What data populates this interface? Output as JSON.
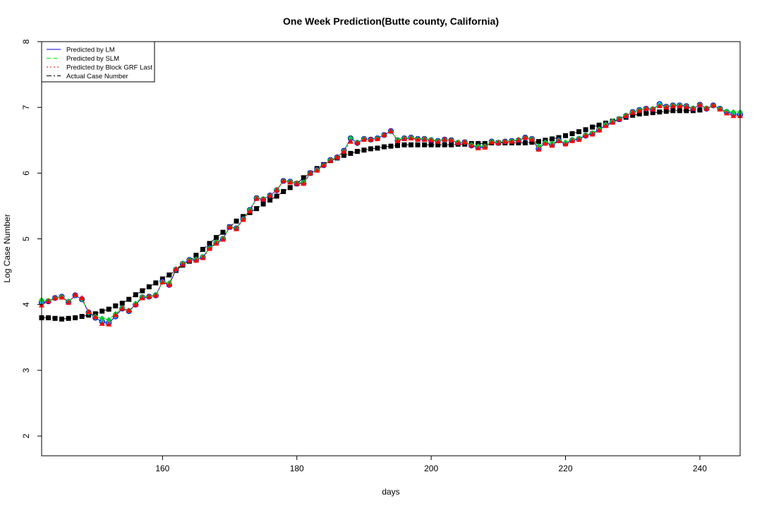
{
  "chart_data": {
    "type": "line",
    "title": "One Week Prediction(Butte county, California)",
    "xlabel": "days",
    "ylabel": "Log Case Number",
    "xlim": [
      142,
      246
    ],
    "ylim": [
      1.7,
      8
    ],
    "xticks": [
      160,
      180,
      200,
      220,
      240
    ],
    "yticks": [
      2,
      3,
      4,
      5,
      6,
      7,
      8
    ],
    "grid": false,
    "legend_position": "top-left",
    "x": [
      142,
      143,
      144,
      145,
      146,
      147,
      148,
      149,
      150,
      151,
      152,
      153,
      154,
      155,
      156,
      157,
      158,
      159,
      160,
      161,
      162,
      163,
      164,
      165,
      166,
      167,
      168,
      169,
      170,
      171,
      172,
      173,
      174,
      175,
      176,
      177,
      178,
      179,
      180,
      181,
      182,
      183,
      184,
      185,
      186,
      187,
      188,
      189,
      190,
      191,
      192,
      193,
      194,
      195,
      196,
      197,
      198,
      199,
      200,
      201,
      202,
      203,
      204,
      205,
      206,
      207,
      208,
      209,
      210,
      211,
      212,
      213,
      214,
      215,
      216,
      217,
      218,
      219,
      220,
      221,
      222,
      223,
      224,
      225,
      226,
      227,
      228,
      229,
      230,
      231,
      232,
      233,
      234,
      235,
      236,
      237,
      238,
      239,
      240,
      241,
      242,
      243,
      244,
      245,
      246
    ],
    "series": [
      {
        "name": "Predicted by LM",
        "color": "#0000ff",
        "line_style": "solid",
        "marker": "circle",
        "values": [
          4.03,
          4.05,
          4.1,
          4.12,
          4.04,
          4.14,
          4.08,
          3.88,
          3.8,
          3.74,
          3.72,
          3.82,
          3.94,
          3.9,
          4.0,
          4.11,
          4.12,
          4.14,
          4.35,
          4.3,
          4.53,
          4.62,
          4.68,
          4.68,
          4.72,
          4.86,
          4.94,
          5.0,
          5.18,
          5.16,
          5.3,
          5.44,
          5.62,
          5.6,
          5.66,
          5.74,
          5.88,
          5.87,
          5.84,
          5.85,
          6.0,
          6.05,
          6.12,
          6.2,
          6.24,
          6.34,
          6.53,
          6.46,
          6.52,
          6.51,
          6.53,
          6.58,
          6.64,
          6.5,
          6.53,
          6.54,
          6.52,
          6.52,
          6.5,
          6.49,
          6.51,
          6.5,
          6.46,
          6.47,
          6.42,
          6.39,
          6.4,
          6.48,
          6.46,
          6.48,
          6.49,
          6.5,
          6.54,
          6.52,
          6.37,
          6.46,
          6.43,
          6.5,
          6.45,
          6.5,
          6.52,
          6.57,
          6.6,
          6.66,
          6.73,
          6.78,
          6.82,
          6.87,
          6.93,
          6.96,
          6.98,
          6.97,
          7.05,
          7.01,
          7.03,
          7.03,
          7.02,
          6.98,
          7.04,
          6.98,
          7.03,
          6.98,
          6.93,
          6.9,
          6.89
        ]
      },
      {
        "name": "Predicted by SLM",
        "color": "#00ee00",
        "line_style": "dashed",
        "marker": "diamond",
        "values": [
          4.07,
          4.06,
          4.1,
          4.12,
          4.05,
          4.14,
          4.08,
          3.88,
          3.82,
          3.79,
          3.77,
          3.86,
          3.95,
          3.91,
          4.02,
          4.12,
          4.12,
          4.15,
          4.34,
          4.33,
          4.54,
          4.63,
          4.68,
          4.69,
          4.73,
          4.86,
          4.95,
          5.01,
          5.18,
          5.16,
          5.3,
          5.44,
          5.62,
          5.61,
          5.66,
          5.75,
          5.88,
          5.87,
          5.85,
          5.86,
          6.0,
          6.05,
          6.12,
          6.2,
          6.24,
          6.33,
          6.53,
          6.47,
          6.52,
          6.51,
          6.53,
          6.58,
          6.63,
          6.51,
          6.53,
          6.54,
          6.52,
          6.52,
          6.51,
          6.49,
          6.51,
          6.5,
          6.47,
          6.47,
          6.43,
          6.41,
          6.41,
          6.48,
          6.47,
          6.48,
          6.49,
          6.51,
          6.54,
          6.52,
          6.41,
          6.47,
          6.45,
          6.5,
          6.47,
          6.51,
          6.53,
          6.58,
          6.61,
          6.67,
          6.74,
          6.79,
          6.83,
          6.88,
          6.93,
          6.96,
          6.98,
          6.98,
          7.03,
          7.01,
          7.03,
          7.03,
          7.02,
          6.99,
          7.04,
          6.99,
          7.03,
          6.98,
          6.94,
          6.93,
          6.93
        ]
      },
      {
        "name": "Predicted by Block GRF Last",
        "color": "#ff0000",
        "line_style": "dotted",
        "marker": "triangle",
        "values": [
          3.99,
          4.05,
          4.1,
          4.11,
          4.03,
          4.15,
          4.1,
          3.89,
          3.81,
          3.71,
          3.7,
          3.84,
          3.94,
          3.91,
          4.0,
          4.1,
          4.12,
          4.14,
          4.34,
          4.3,
          4.54,
          4.61,
          4.67,
          4.67,
          4.71,
          4.85,
          4.93,
          4.99,
          5.18,
          5.15,
          5.29,
          5.42,
          5.61,
          5.6,
          5.66,
          5.74,
          5.88,
          5.86,
          5.84,
          5.84,
          6.0,
          6.04,
          6.12,
          6.19,
          6.24,
          6.33,
          6.48,
          6.46,
          6.51,
          6.51,
          6.52,
          6.58,
          6.64,
          6.49,
          6.52,
          6.53,
          6.51,
          6.51,
          6.5,
          6.48,
          6.51,
          6.5,
          6.46,
          6.47,
          6.42,
          6.38,
          6.39,
          6.47,
          6.46,
          6.48,
          6.48,
          6.5,
          6.54,
          6.51,
          6.36,
          6.45,
          6.42,
          6.49,
          6.44,
          6.49,
          6.51,
          6.57,
          6.59,
          6.65,
          6.72,
          6.77,
          6.82,
          6.87,
          6.92,
          6.95,
          6.98,
          6.97,
          7.02,
          7.0,
          7.02,
          7.02,
          7.01,
          6.98,
          7.04,
          6.98,
          7.03,
          6.97,
          6.91,
          6.87,
          6.87
        ]
      },
      {
        "name": "Actual Case Number",
        "color": "#000000",
        "line_style": "dashdot",
        "marker": "square",
        "values": [
          3.8,
          3.8,
          3.79,
          3.78,
          3.79,
          3.8,
          3.82,
          3.84,
          3.86,
          3.9,
          3.93,
          3.98,
          4.02,
          4.08,
          4.15,
          4.21,
          4.27,
          4.33,
          4.39,
          4.45,
          4.52,
          4.6,
          4.66,
          4.75,
          4.84,
          4.93,
          5.02,
          5.1,
          5.18,
          5.27,
          5.34,
          5.4,
          5.46,
          5.53,
          5.59,
          5.65,
          5.72,
          5.78,
          5.84,
          5.93,
          6.0,
          6.07,
          6.13,
          6.19,
          6.23,
          6.27,
          6.3,
          6.33,
          6.35,
          6.37,
          6.38,
          6.4,
          6.41,
          6.42,
          6.43,
          6.43,
          6.43,
          6.43,
          6.43,
          6.43,
          6.43,
          6.43,
          6.44,
          6.44,
          6.45,
          6.45,
          6.45,
          6.46,
          6.46,
          6.46,
          6.46,
          6.46,
          6.46,
          6.47,
          6.48,
          6.5,
          6.52,
          6.54,
          6.57,
          6.6,
          6.63,
          6.66,
          6.7,
          6.73,
          6.76,
          6.79,
          6.82,
          6.85,
          6.88,
          6.9,
          6.91,
          6.92,
          6.93,
          6.94,
          6.95,
          6.95,
          6.95,
          6.95,
          6.96,
          null,
          null,
          null,
          null,
          null,
          null
        ]
      }
    ]
  }
}
